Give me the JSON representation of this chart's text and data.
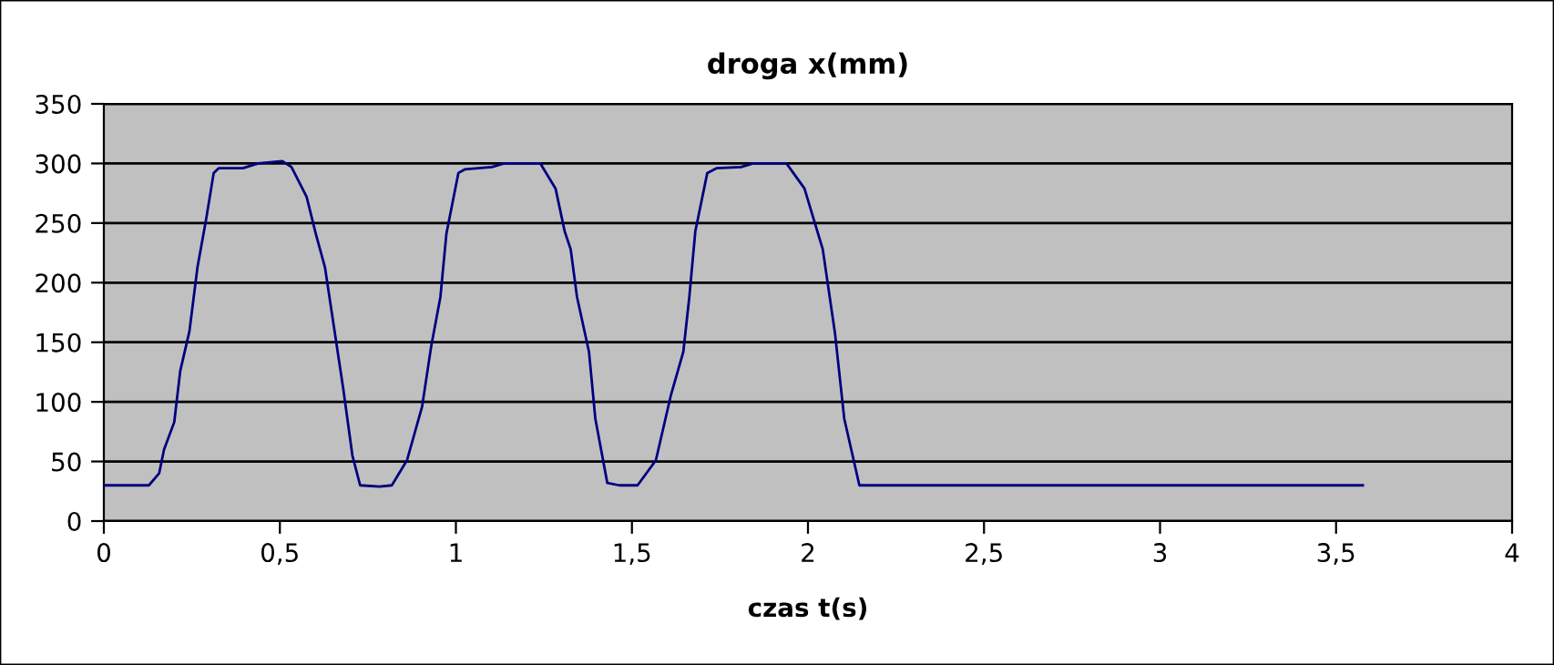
{
  "chart_data": {
    "type": "line",
    "title": "droga x(mm)",
    "xlabel": "czas t(s)",
    "xlim": [
      0,
      4
    ],
    "xticks": [
      0,
      {
        "value": 0.5,
        "label": "0,5"
      },
      1,
      {
        "value": 1.5,
        "label": "1,5"
      },
      2,
      {
        "value": 2.5,
        "label": "2,5"
      },
      3,
      {
        "value": 3.5,
        "label": "3,5"
      },
      4
    ],
    "ylim": [
      0,
      350
    ],
    "yticks": [
      0,
      50,
      100,
      150,
      200,
      250,
      300,
      350
    ],
    "grid": "y",
    "series": [
      {
        "color": "#000080",
        "x": [
          0,
          0.128,
          0.157,
          0.171,
          0.2,
          0.217,
          0.243,
          0.266,
          0.291,
          0.312,
          0.326,
          0.395,
          0.438,
          0.507,
          0.533,
          0.576,
          0.602,
          0.628,
          0.654,
          0.68,
          0.706,
          0.728,
          0.783,
          0.818,
          0.861,
          0.904,
          0.93,
          0.956,
          0.973,
          1.007,
          1.025,
          1.102,
          1.137,
          1.24,
          1.283,
          1.309,
          1.326,
          1.344,
          1.378,
          1.396,
          1.43,
          1.464,
          1.516,
          1.568,
          1.611,
          1.646,
          1.663,
          1.68,
          1.714,
          1.74,
          1.81,
          1.844,
          1.939,
          1.99,
          2.042,
          2.077,
          2.103,
          2.146,
          3.576
        ],
        "values": [
          30,
          30,
          40,
          60,
          83,
          126,
          159,
          213,
          254,
          292,
          296,
          296,
          300,
          302,
          297,
          272,
          241,
          213,
          162,
          111,
          55,
          30,
          29,
          30,
          51,
          96,
          147,
          188,
          241,
          292,
          295,
          297,
          300,
          300,
          279,
          243,
          228,
          188,
          142,
          86,
          32,
          30,
          30,
          51,
          106,
          142,
          188,
          243,
          292,
          296,
          297,
          300,
          300,
          279,
          228,
          157,
          86,
          30,
          30
        ]
      }
    ]
  }
}
